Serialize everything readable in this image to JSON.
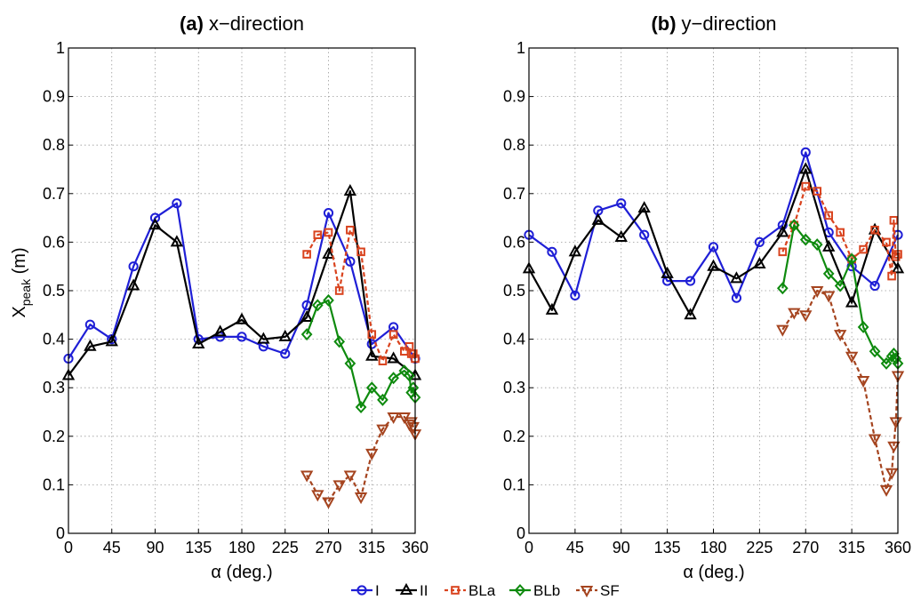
{
  "chart_data": [
    {
      "type": "line",
      "title_prefix": "(a)",
      "title_rest": "x−direction",
      "xlabel": "α  (deg.)",
      "ylabel": "X",
      "ylabel_sub": "peak",
      "ylabel_unit": " (m)",
      "xlim": [
        0,
        360
      ],
      "ylim": [
        0,
        1
      ],
      "xticks": [
        0,
        45,
        90,
        135,
        180,
        225,
        270,
        315,
        360
      ],
      "yticks": [
        0,
        0.1,
        0.2,
        0.3,
        0.4,
        0.5,
        0.6,
        0.7,
        0.8,
        0.9,
        1
      ],
      "grid": "dotted",
      "series": [
        {
          "name": "I",
          "color": "#1f1fd6",
          "marker": "circle",
          "dash": "solid",
          "x": [
            0,
            22.5,
            45,
            67.5,
            90,
            112.5,
            135,
            157.5,
            180,
            202.5,
            225,
            247.5,
            270,
            292.5,
            315,
            337.5,
            360
          ],
          "y": [
            0.36,
            0.43,
            0.4,
            0.55,
            0.65,
            0.68,
            0.4,
            0.405,
            0.405,
            0.385,
            0.37,
            0.47,
            0.66,
            0.56,
            0.39,
            0.425,
            0.36
          ]
        },
        {
          "name": "II",
          "color": "#000000",
          "marker": "triangle-up",
          "dash": "solid",
          "x": [
            0,
            22.5,
            45,
            67.5,
            90,
            112.5,
            135,
            157.5,
            180,
            202.5,
            225,
            247.5,
            270,
            292.5,
            315,
            337.5,
            360
          ],
          "y": [
            0.325,
            0.385,
            0.395,
            0.51,
            0.635,
            0.6,
            0.39,
            0.415,
            0.44,
            0.4,
            0.405,
            0.445,
            0.575,
            0.705,
            0.365,
            0.36,
            0.325
          ]
        },
        {
          "name": "BLa",
          "color": "#d9431e",
          "marker": "square",
          "dash": "dashed",
          "x": [
            247.5,
            258.75,
            270,
            281.25,
            292.5,
            303.75,
            315,
            326.25,
            337.5,
            348.75,
            354,
            356,
            358,
            360
          ],
          "y": [
            0.575,
            0.615,
            0.62,
            0.5,
            0.625,
            0.58,
            0.41,
            0.355,
            0.41,
            0.375,
            0.385,
            0.37,
            0.37,
            0.36
          ]
        },
        {
          "name": "BLb",
          "color": "#0e8a0e",
          "marker": "diamond",
          "dash": "solid",
          "x": [
            247.5,
            258.75,
            270,
            281.25,
            292.5,
            303.75,
            315,
            326.25,
            337.5,
            348.75,
            354,
            356,
            358,
            360
          ],
          "y": [
            0.41,
            0.47,
            0.48,
            0.395,
            0.35,
            0.26,
            0.3,
            0.275,
            0.32,
            0.335,
            0.325,
            0.29,
            0.3,
            0.28
          ]
        },
        {
          "name": "SF",
          "color": "#a5441f",
          "marker": "triangle-down",
          "dash": "dashed",
          "x": [
            247.5,
            258.75,
            270,
            281.25,
            292.5,
            303.75,
            315,
            326.25,
            337.5,
            348.75,
            354,
            356,
            358,
            360
          ],
          "y": [
            0.12,
            0.08,
            0.065,
            0.1,
            0.12,
            0.075,
            0.165,
            0.215,
            0.24,
            0.24,
            0.225,
            0.23,
            0.22,
            0.205
          ]
        }
      ]
    },
    {
      "type": "line",
      "title_prefix": "(b)",
      "title_rest": "y−direction",
      "xlabel": "α  (deg.)",
      "xlim": [
        0,
        360
      ],
      "ylim": [
        0,
        1
      ],
      "xticks": [
        0,
        45,
        90,
        135,
        180,
        225,
        270,
        315,
        360
      ],
      "yticks": [
        0,
        0.1,
        0.2,
        0.3,
        0.4,
        0.5,
        0.6,
        0.7,
        0.8,
        0.9,
        1
      ],
      "grid": "dotted",
      "series": [
        {
          "name": "I",
          "color": "#1f1fd6",
          "marker": "circle",
          "dash": "solid",
          "x": [
            0,
            22.5,
            45,
            67.5,
            90,
            112.5,
            135,
            157.5,
            180,
            202.5,
            225,
            247.5,
            270,
            292.5,
            315,
            337.5,
            360
          ],
          "y": [
            0.615,
            0.58,
            0.49,
            0.665,
            0.68,
            0.615,
            0.52,
            0.52,
            0.59,
            0.485,
            0.6,
            0.635,
            0.785,
            0.62,
            0.55,
            0.51,
            0.615
          ]
        },
        {
          "name": "II",
          "color": "#000000",
          "marker": "triangle-up",
          "dash": "solid",
          "x": [
            0,
            22.5,
            45,
            67.5,
            90,
            112.5,
            135,
            157.5,
            180,
            202.5,
            225,
            247.5,
            270,
            292.5,
            315,
            337.5,
            360
          ],
          "y": [
            0.545,
            0.46,
            0.58,
            0.645,
            0.61,
            0.67,
            0.535,
            0.45,
            0.55,
            0.525,
            0.555,
            0.62,
            0.75,
            0.59,
            0.475,
            0.625,
            0.545
          ]
        },
        {
          "name": "BLa",
          "color": "#d9431e",
          "marker": "square",
          "dash": "dashed",
          "x": [
            247.5,
            258.75,
            270,
            281.25,
            292.5,
            303.75,
            315,
            326.25,
            337.5,
            348.75,
            354,
            356,
            358,
            360
          ],
          "y": [
            0.58,
            0.635,
            0.715,
            0.705,
            0.655,
            0.62,
            0.565,
            0.585,
            0.625,
            0.6,
            0.53,
            0.645,
            0.57,
            0.575
          ]
        },
        {
          "name": "BLb",
          "color": "#0e8a0e",
          "marker": "diamond",
          "dash": "solid",
          "x": [
            247.5,
            258.75,
            270,
            281.25,
            292.5,
            303.75,
            315,
            326.25,
            337.5,
            348.75,
            354,
            356,
            358,
            360
          ],
          "y": [
            0.505,
            0.635,
            0.605,
            0.595,
            0.535,
            0.51,
            0.565,
            0.425,
            0.375,
            0.35,
            0.365,
            0.37,
            0.36,
            0.35
          ]
        },
        {
          "name": "SF",
          "color": "#a5441f",
          "marker": "triangle-down",
          "dash": "dashed",
          "x": [
            247.5,
            258.75,
            270,
            281.25,
            292.5,
            303.75,
            315,
            326.25,
            337.5,
            348.75,
            354,
            356,
            358,
            360
          ],
          "y": [
            0.42,
            0.455,
            0.45,
            0.5,
            0.49,
            0.41,
            0.365,
            0.315,
            0.195,
            0.09,
            0.125,
            0.18,
            0.23,
            0.325
          ]
        }
      ]
    }
  ],
  "legend": [
    {
      "name": "I",
      "color": "#1f1fd6",
      "marker": "circle",
      "dash": "solid"
    },
    {
      "name": "II",
      "color": "#000000",
      "marker": "triangle-up",
      "dash": "solid"
    },
    {
      "name": "BLa",
      "color": "#d9431e",
      "marker": "square",
      "dash": "dashed"
    },
    {
      "name": "BLb",
      "color": "#0e8a0e",
      "marker": "diamond",
      "dash": "solid"
    },
    {
      "name": "SF",
      "color": "#a5441f",
      "marker": "triangle-down",
      "dash": "dashed"
    }
  ]
}
